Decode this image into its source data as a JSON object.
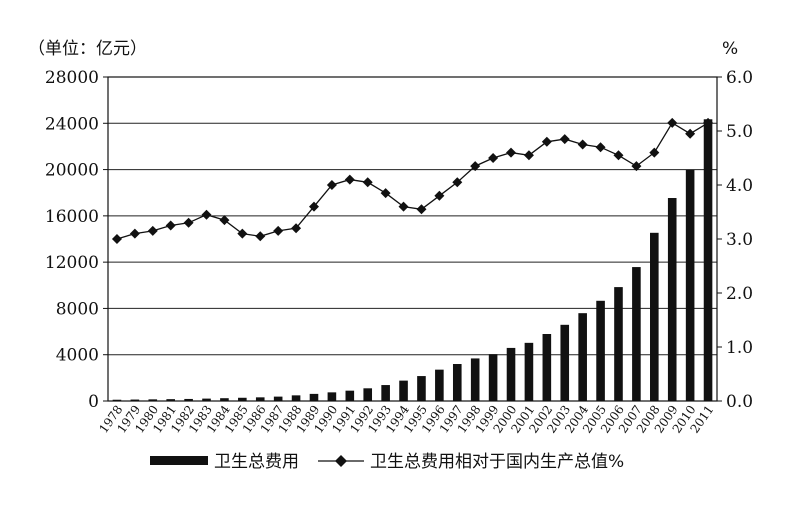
{
  "chart_data": {
    "type": "bar+line",
    "left_unit_label": "（单位：亿元）",
    "right_unit_label": "%",
    "categories": [
      "1978",
      "1979",
      "1980",
      "1981",
      "1982",
      "1983",
      "1984",
      "1985",
      "1986",
      "1987",
      "1988",
      "1989",
      "1990",
      "1991",
      "1992",
      "1993",
      "1994",
      "1995",
      "1996",
      "1997",
      "1998",
      "1999",
      "2000",
      "2001",
      "2002",
      "2003",
      "2004",
      "2005",
      "2006",
      "2007",
      "2008",
      "2009",
      "2010",
      "2011"
    ],
    "y_left": {
      "min": 0,
      "max": 28000,
      "ticks": [
        "0",
        "4000",
        "8000",
        "12000",
        "16000",
        "20000",
        "24000",
        "28000"
      ]
    },
    "y_right": {
      "min": 0,
      "max": 6,
      "ticks": [
        "0.0",
        "1.0",
        "2.0",
        "3.0",
        "4.0",
        "5.0",
        "6.0"
      ]
    },
    "grid": true,
    "legend_position": "bottom",
    "series": [
      {
        "name": "卫生总费用",
        "kind": "bar",
        "axis": "left",
        "color": "#111111",
        "values": [
          110,
          126,
          143,
          160,
          177,
          207,
          242,
          279,
          316,
          379,
          488,
          615,
          747,
          893,
          1097,
          1378,
          1761,
          2155,
          2709,
          3197,
          3679,
          4048,
          4587,
          5026,
          5790,
          6584,
          7590,
          8660,
          9843,
          11574,
          14535,
          17542,
          19980,
          24346
        ]
      },
      {
        "name": "卫生总费用相对于国内生产总值%",
        "kind": "line",
        "axis": "right",
        "color": "#111111",
        "marker": "diamond",
        "values": [
          3.0,
          3.1,
          3.15,
          3.25,
          3.3,
          3.45,
          3.35,
          3.1,
          3.05,
          3.15,
          3.2,
          3.6,
          4.0,
          4.1,
          4.05,
          3.85,
          3.6,
          3.55,
          3.8,
          4.05,
          4.35,
          4.5,
          4.6,
          4.55,
          4.8,
          4.85,
          4.75,
          4.7,
          4.55,
          4.35,
          4.6,
          5.15,
          4.95,
          5.15
        ]
      }
    ]
  }
}
